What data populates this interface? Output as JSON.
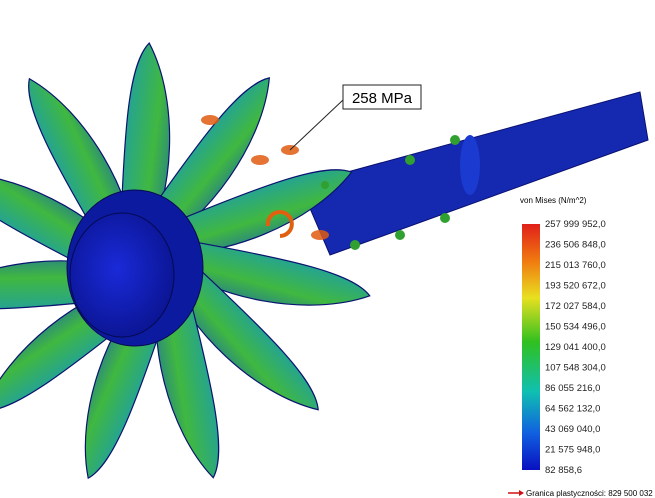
{
  "callout": "258 MPa",
  "legend": {
    "title": "von Mises (N/m^2)",
    "labels": [
      "257 999 952,0",
      "236 506 848,0",
      "215 013 760,0",
      "193 520 672,0",
      "172 027 584,0",
      "150 534 496,0",
      "129 041 400,0",
      "107 548 304,0",
      "86 055 216,0",
      "64 562 132,0",
      "43 069 040,0",
      "21 575 948,0",
      "82 858,6"
    ]
  },
  "footer": "Granica plastyczności: 829 500 032"
}
